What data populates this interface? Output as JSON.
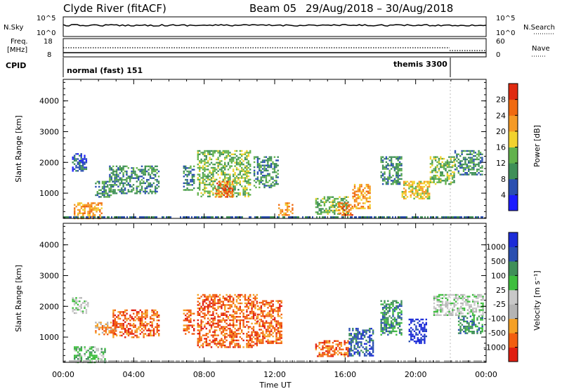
{
  "header": {
    "station": "Clyde River (fitACF)",
    "beam": "Beam 05",
    "dates": "29/Aug/2018 – 30/Aug/2018"
  },
  "panels": {
    "nsky_label": "N.Sky",
    "nsky_top": "10^5",
    "nsky_bottom": "10^0",
    "nsearch_label": "N.Search",
    "nsearch_top": "10^5",
    "nsearch_bottom": "10^0",
    "freq_label_line1": "Freq.",
    "freq_label_line2": "[MHz]",
    "freq_top": "18",
    "freq_bottom": "8",
    "nave_label": "Nave",
    "nave_top": "60",
    "nave_bottom": "0",
    "cpid_label": "CPID",
    "cpid_mode1": "normal (fast) 151",
    "cpid_mode2": "themis 3300"
  },
  "colors": {
    "power_scale": [
      "#1c1cff",
      "#2a4fb0",
      "#3f8f58",
      "#62b24c",
      "#f2d22e",
      "#f59a25",
      "#f06a10",
      "#e02a10"
    ],
    "velocity_scale": [
      "#e01e10",
      "#f25e10",
      "#f5a025",
      "#b4b4b4",
      "#c8c8c8",
      "#3ebe3e",
      "#3f8f58",
      "#2a4fb0",
      "#1c2cd8"
    ]
  },
  "chart_data": [
    {
      "type": "heatmap",
      "name_label": "Power",
      "ylabel": "Slant Range [km]",
      "xlabel": "Time UT",
      "x_ticks": [
        "00:00",
        "04:00",
        "08:00",
        "12:00",
        "16:00",
        "20:00",
        "00:00"
      ],
      "y_ticks": [
        1000,
        2000,
        3000,
        4000
      ],
      "ylim": [
        180,
        4700
      ],
      "xlim_hours": [
        0,
        24
      ],
      "colorbar": {
        "label": "Power [dB]",
        "ticks": [
          4,
          8,
          12,
          16,
          20,
          24,
          28
        ],
        "range": [
          0,
          32
        ]
      },
      "echo_regions": [
        {
          "t0": 0.5,
          "t1": 1.3,
          "r0": 1700,
          "r1": 2300,
          "level": 1
        },
        {
          "t0": 0.6,
          "t1": 2.2,
          "r0": 200,
          "r1": 700,
          "level": 5
        },
        {
          "t0": 1.8,
          "t1": 2.8,
          "r0": 900,
          "r1": 1400,
          "level": 2
        },
        {
          "t0": 2.6,
          "t1": 5.4,
          "r0": 1000,
          "r1": 1900,
          "level": 2
        },
        {
          "t0": 6.8,
          "t1": 7.4,
          "r0": 1100,
          "r1": 1900,
          "level": 2
        },
        {
          "t0": 7.6,
          "t1": 10.6,
          "r0": 900,
          "r1": 2400,
          "level": 3
        },
        {
          "t0": 8.6,
          "t1": 9.6,
          "r0": 900,
          "r1": 1400,
          "level": 6
        },
        {
          "t0": 10.8,
          "t1": 12.2,
          "r0": 1200,
          "r1": 2200,
          "level": 2
        },
        {
          "t0": 12.2,
          "t1": 13.0,
          "r0": 300,
          "r1": 700,
          "level": 5
        },
        {
          "t0": 14.3,
          "t1": 16.2,
          "r0": 300,
          "r1": 900,
          "level": 3
        },
        {
          "t0": 15.6,
          "t1": 16.4,
          "r0": 300,
          "r1": 700,
          "level": 6
        },
        {
          "t0": 16.4,
          "t1": 17.4,
          "r0": 500,
          "r1": 1300,
          "level": 5
        },
        {
          "t0": 18.0,
          "t1": 19.2,
          "r0": 1300,
          "r1": 2200,
          "level": 2
        },
        {
          "t0": 19.2,
          "t1": 20.8,
          "r0": 800,
          "r1": 1400,
          "level": 4
        },
        {
          "t0": 20.8,
          "t1": 22.2,
          "r0": 1300,
          "r1": 2200,
          "level": 3
        },
        {
          "t0": 22.2,
          "t1": 23.8,
          "r0": 1600,
          "r1": 2400,
          "level": 2
        }
      ]
    },
    {
      "type": "heatmap",
      "name_label": "Velocity",
      "ylabel": "Slant Range [km]",
      "xlabel": "Time UT",
      "x_ticks": [
        "00:00",
        "04:00",
        "08:00",
        "12:00",
        "16:00",
        "20:00",
        "00:00"
      ],
      "y_ticks": [
        1000,
        2000,
        3000,
        4000
      ],
      "ylim": [
        180,
        4700
      ],
      "xlim_hours": [
        0,
        24
      ],
      "colorbar": {
        "label": "Velocity [m s⁻¹]",
        "ticks": [
          1000,
          500,
          100,
          25,
          -25,
          -100,
          -500,
          -1000
        ]
      },
      "echo_regions": [
        {
          "t0": 0.5,
          "t1": 1.4,
          "r0": 1800,
          "r1": 2300,
          "level": 4
        },
        {
          "t0": 0.6,
          "t1": 2.4,
          "r0": 200,
          "r1": 700,
          "level": 5
        },
        {
          "t0": 1.8,
          "t1": 3.0,
          "r0": 1100,
          "r1": 1500,
          "level": 2
        },
        {
          "t0": 2.8,
          "t1": 5.4,
          "r0": 1000,
          "r1": 1900,
          "level": 1
        },
        {
          "t0": 6.8,
          "t1": 7.4,
          "r0": 1100,
          "r1": 1900,
          "level": 1
        },
        {
          "t0": 7.6,
          "t1": 11.0,
          "r0": 700,
          "r1": 2400,
          "level": 1
        },
        {
          "t0": 11.0,
          "t1": 12.4,
          "r0": 800,
          "r1": 2200,
          "level": 1
        },
        {
          "t0": 14.3,
          "t1": 16.2,
          "r0": 400,
          "r1": 900,
          "level": 1
        },
        {
          "t0": 16.2,
          "t1": 17.6,
          "r0": 400,
          "r1": 1300,
          "level": 7
        },
        {
          "t0": 18.0,
          "t1": 19.2,
          "r0": 1100,
          "r1": 2200,
          "level": 6
        },
        {
          "t0": 19.6,
          "t1": 20.6,
          "r0": 800,
          "r1": 1600,
          "level": 8
        },
        {
          "t0": 21.0,
          "t1": 23.8,
          "r0": 1700,
          "r1": 2400,
          "level": 4
        },
        {
          "t0": 22.4,
          "t1": 23.8,
          "r0": 1100,
          "r1": 1700,
          "level": 6
        }
      ]
    }
  ]
}
